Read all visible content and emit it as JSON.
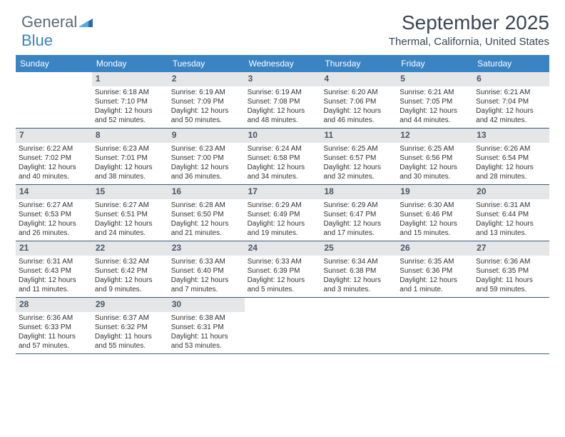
{
  "logo": {
    "part1": "General",
    "part2": "Blue"
  },
  "header": {
    "title": "September 2025",
    "subtitle": "Thermal, California, United States"
  },
  "dayheaders": [
    "Sunday",
    "Monday",
    "Tuesday",
    "Wednesday",
    "Thursday",
    "Friday",
    "Saturday"
  ],
  "colors": {
    "header_bg": "#3a84c4",
    "daynum_bg": "#e4e6e8",
    "rule": "#3a5a78",
    "text": "#333333",
    "title": "#3a4754"
  },
  "weeks": [
    [
      {
        "empty": true
      },
      {
        "n": "1",
        "sr": "Sunrise: 6:18 AM",
        "ss": "Sunset: 7:10 PM",
        "d1": "Daylight: 12 hours",
        "d2": "and 52 minutes."
      },
      {
        "n": "2",
        "sr": "Sunrise: 6:19 AM",
        "ss": "Sunset: 7:09 PM",
        "d1": "Daylight: 12 hours",
        "d2": "and 50 minutes."
      },
      {
        "n": "3",
        "sr": "Sunrise: 6:19 AM",
        "ss": "Sunset: 7:08 PM",
        "d1": "Daylight: 12 hours",
        "d2": "and 48 minutes."
      },
      {
        "n": "4",
        "sr": "Sunrise: 6:20 AM",
        "ss": "Sunset: 7:06 PM",
        "d1": "Daylight: 12 hours",
        "d2": "and 46 minutes."
      },
      {
        "n": "5",
        "sr": "Sunrise: 6:21 AM",
        "ss": "Sunset: 7:05 PM",
        "d1": "Daylight: 12 hours",
        "d2": "and 44 minutes."
      },
      {
        "n": "6",
        "sr": "Sunrise: 6:21 AM",
        "ss": "Sunset: 7:04 PM",
        "d1": "Daylight: 12 hours",
        "d2": "and 42 minutes."
      }
    ],
    [
      {
        "n": "7",
        "sr": "Sunrise: 6:22 AM",
        "ss": "Sunset: 7:02 PM",
        "d1": "Daylight: 12 hours",
        "d2": "and 40 minutes."
      },
      {
        "n": "8",
        "sr": "Sunrise: 6:23 AM",
        "ss": "Sunset: 7:01 PM",
        "d1": "Daylight: 12 hours",
        "d2": "and 38 minutes."
      },
      {
        "n": "9",
        "sr": "Sunrise: 6:23 AM",
        "ss": "Sunset: 7:00 PM",
        "d1": "Daylight: 12 hours",
        "d2": "and 36 minutes."
      },
      {
        "n": "10",
        "sr": "Sunrise: 6:24 AM",
        "ss": "Sunset: 6:58 PM",
        "d1": "Daylight: 12 hours",
        "d2": "and 34 minutes."
      },
      {
        "n": "11",
        "sr": "Sunrise: 6:25 AM",
        "ss": "Sunset: 6:57 PM",
        "d1": "Daylight: 12 hours",
        "d2": "and 32 minutes."
      },
      {
        "n": "12",
        "sr": "Sunrise: 6:25 AM",
        "ss": "Sunset: 6:56 PM",
        "d1": "Daylight: 12 hours",
        "d2": "and 30 minutes."
      },
      {
        "n": "13",
        "sr": "Sunrise: 6:26 AM",
        "ss": "Sunset: 6:54 PM",
        "d1": "Daylight: 12 hours",
        "d2": "and 28 minutes."
      }
    ],
    [
      {
        "n": "14",
        "sr": "Sunrise: 6:27 AM",
        "ss": "Sunset: 6:53 PM",
        "d1": "Daylight: 12 hours",
        "d2": "and 26 minutes."
      },
      {
        "n": "15",
        "sr": "Sunrise: 6:27 AM",
        "ss": "Sunset: 6:51 PM",
        "d1": "Daylight: 12 hours",
        "d2": "and 24 minutes."
      },
      {
        "n": "16",
        "sr": "Sunrise: 6:28 AM",
        "ss": "Sunset: 6:50 PM",
        "d1": "Daylight: 12 hours",
        "d2": "and 21 minutes."
      },
      {
        "n": "17",
        "sr": "Sunrise: 6:29 AM",
        "ss": "Sunset: 6:49 PM",
        "d1": "Daylight: 12 hours",
        "d2": "and 19 minutes."
      },
      {
        "n": "18",
        "sr": "Sunrise: 6:29 AM",
        "ss": "Sunset: 6:47 PM",
        "d1": "Daylight: 12 hours",
        "d2": "and 17 minutes."
      },
      {
        "n": "19",
        "sr": "Sunrise: 6:30 AM",
        "ss": "Sunset: 6:46 PM",
        "d1": "Daylight: 12 hours",
        "d2": "and 15 minutes."
      },
      {
        "n": "20",
        "sr": "Sunrise: 6:31 AM",
        "ss": "Sunset: 6:44 PM",
        "d1": "Daylight: 12 hours",
        "d2": "and 13 minutes."
      }
    ],
    [
      {
        "n": "21",
        "sr": "Sunrise: 6:31 AM",
        "ss": "Sunset: 6:43 PM",
        "d1": "Daylight: 12 hours",
        "d2": "and 11 minutes."
      },
      {
        "n": "22",
        "sr": "Sunrise: 6:32 AM",
        "ss": "Sunset: 6:42 PM",
        "d1": "Daylight: 12 hours",
        "d2": "and 9 minutes."
      },
      {
        "n": "23",
        "sr": "Sunrise: 6:33 AM",
        "ss": "Sunset: 6:40 PM",
        "d1": "Daylight: 12 hours",
        "d2": "and 7 minutes."
      },
      {
        "n": "24",
        "sr": "Sunrise: 6:33 AM",
        "ss": "Sunset: 6:39 PM",
        "d1": "Daylight: 12 hours",
        "d2": "and 5 minutes."
      },
      {
        "n": "25",
        "sr": "Sunrise: 6:34 AM",
        "ss": "Sunset: 6:38 PM",
        "d1": "Daylight: 12 hours",
        "d2": "and 3 minutes."
      },
      {
        "n": "26",
        "sr": "Sunrise: 6:35 AM",
        "ss": "Sunset: 6:36 PM",
        "d1": "Daylight: 12 hours",
        "d2": "and 1 minute."
      },
      {
        "n": "27",
        "sr": "Sunrise: 6:36 AM",
        "ss": "Sunset: 6:35 PM",
        "d1": "Daylight: 11 hours",
        "d2": "and 59 minutes."
      }
    ],
    [
      {
        "n": "28",
        "sr": "Sunrise: 6:36 AM",
        "ss": "Sunset: 6:33 PM",
        "d1": "Daylight: 11 hours",
        "d2": "and 57 minutes."
      },
      {
        "n": "29",
        "sr": "Sunrise: 6:37 AM",
        "ss": "Sunset: 6:32 PM",
        "d1": "Daylight: 11 hours",
        "d2": "and 55 minutes."
      },
      {
        "n": "30",
        "sr": "Sunrise: 6:38 AM",
        "ss": "Sunset: 6:31 PM",
        "d1": "Daylight: 11 hours",
        "d2": "and 53 minutes."
      },
      {
        "empty": true
      },
      {
        "empty": true
      },
      {
        "empty": true
      },
      {
        "empty": true
      }
    ]
  ]
}
